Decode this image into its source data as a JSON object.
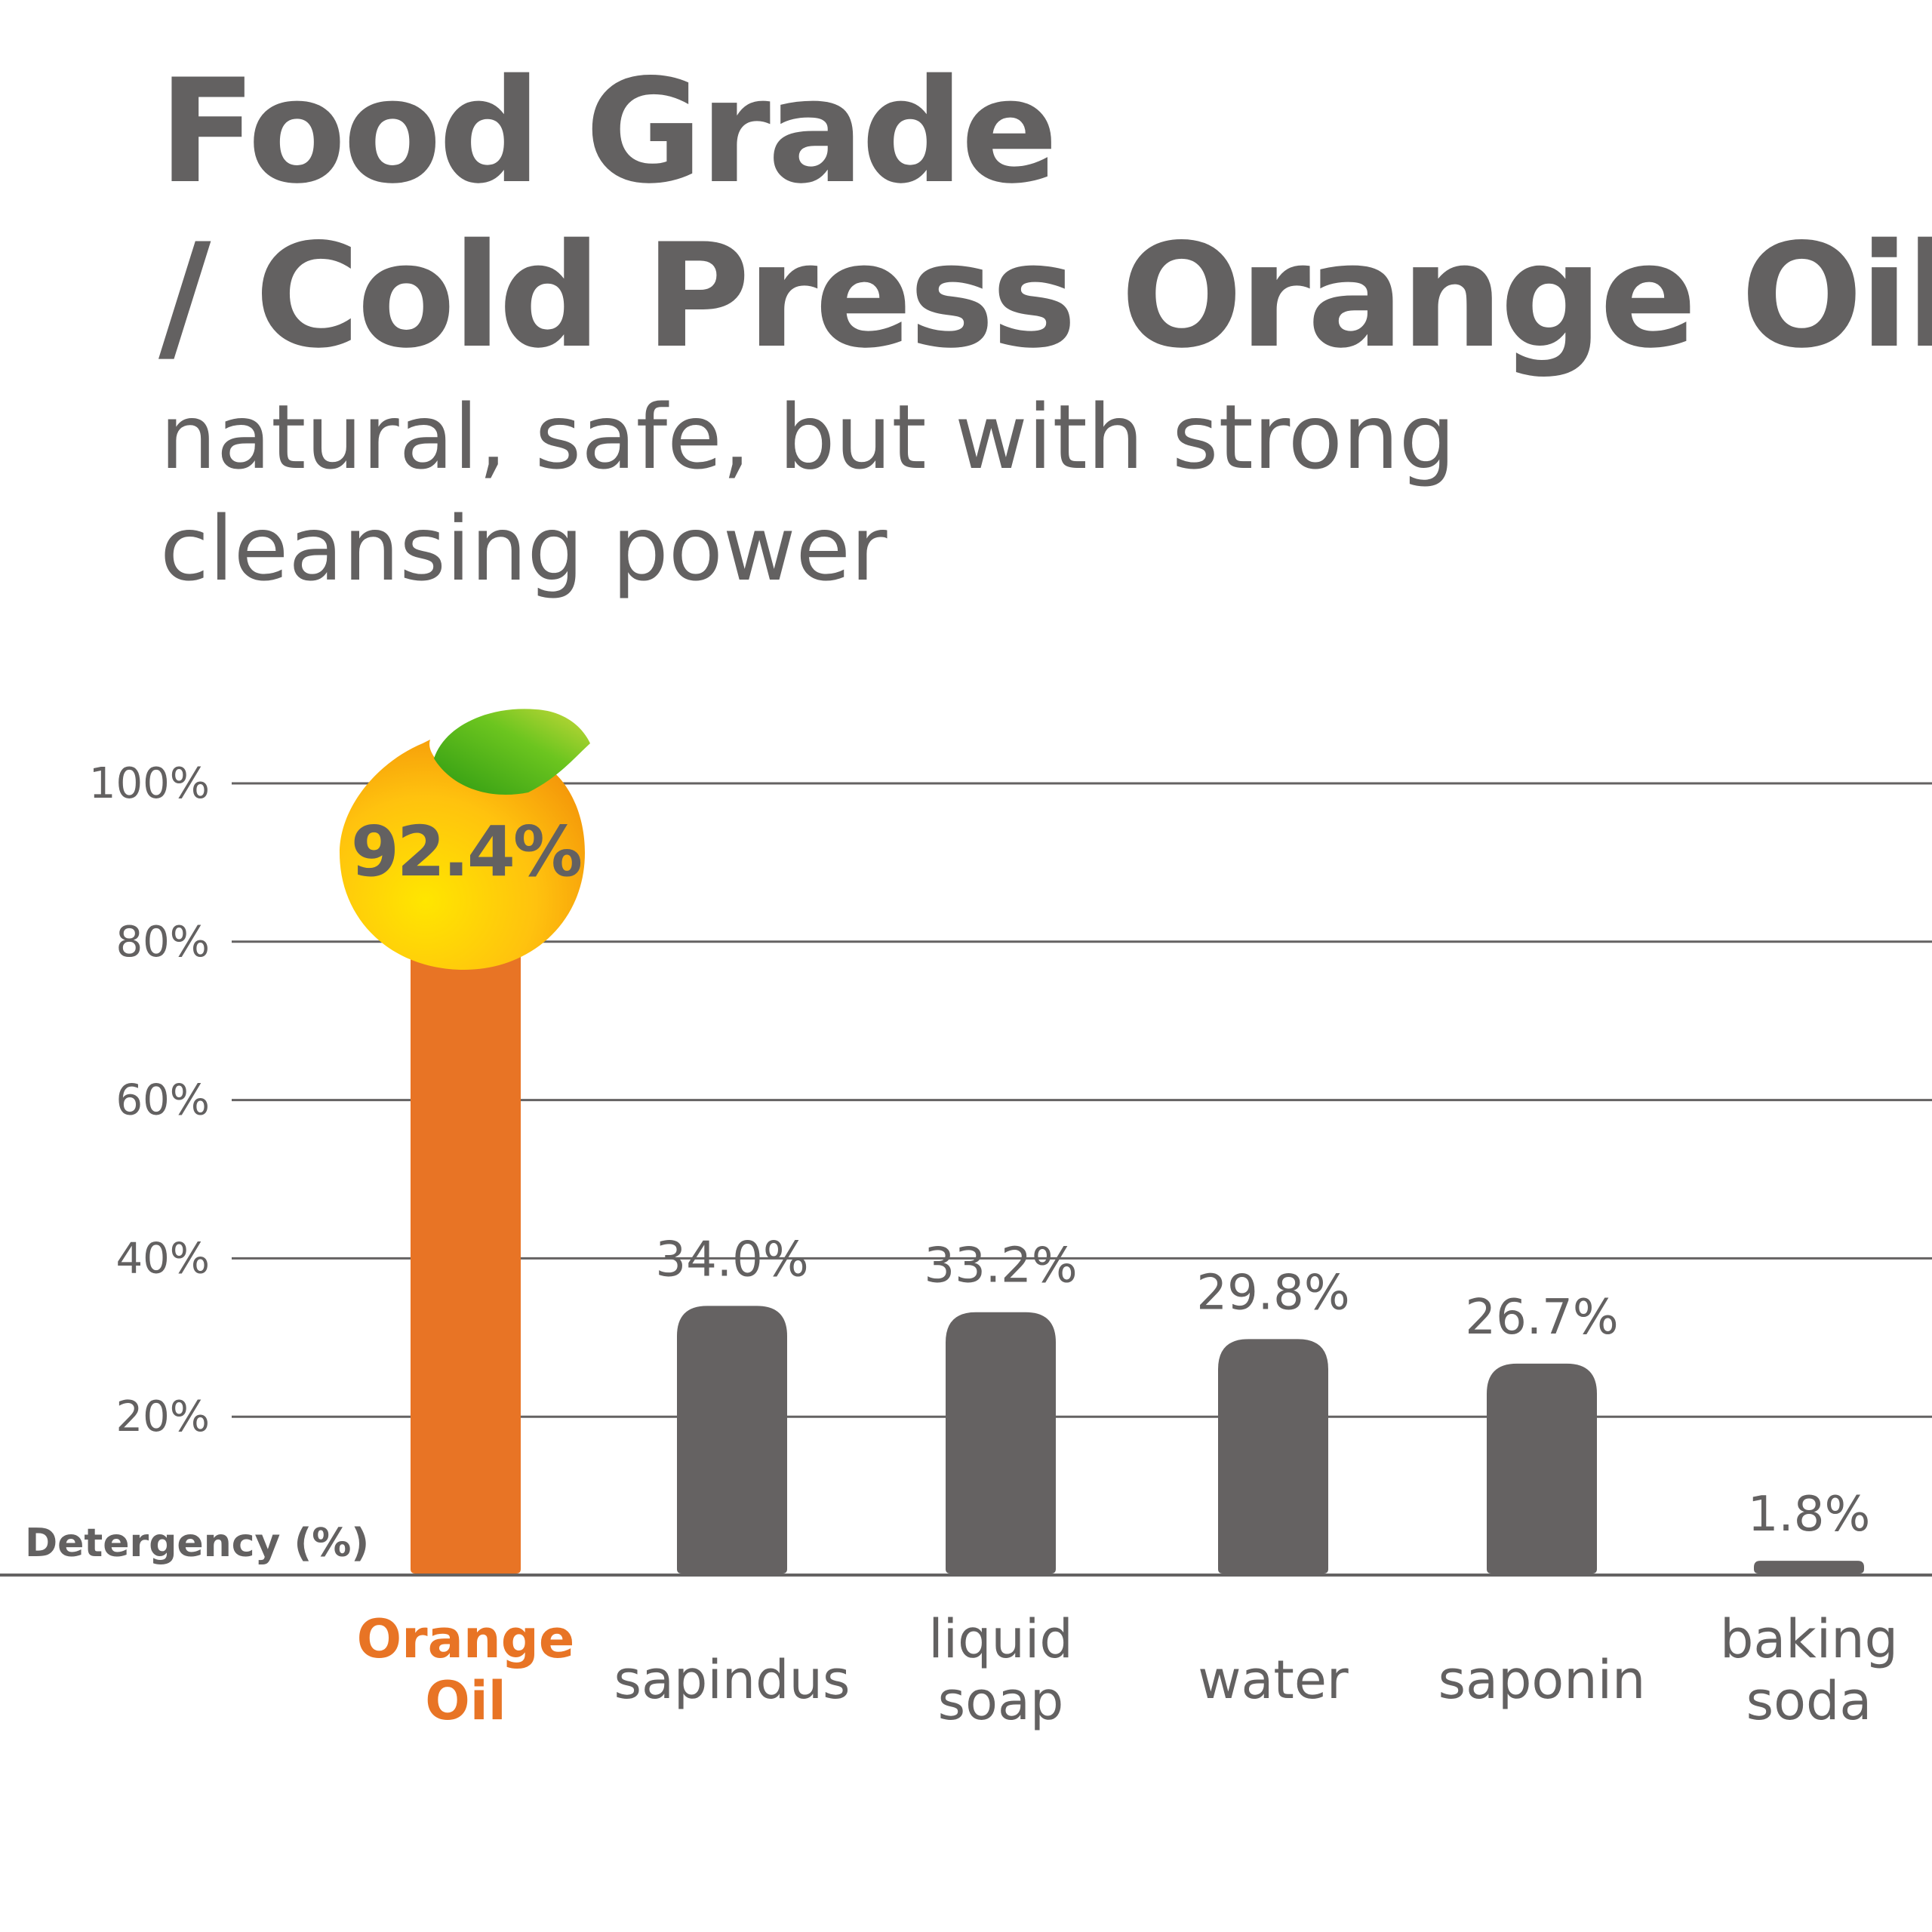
{
  "header": {
    "title_line1": "Food Grade",
    "title_line2": "/ Cold Press Orange Oil",
    "subtitle_line1": "natural, safe, but with strong",
    "subtitle_line2": "cleansing power"
  },
  "chart_data": {
    "type": "bar",
    "ylabel": "Detergency (%)",
    "ylim": [
      0,
      100
    ],
    "yticks": [
      "20%",
      "40%",
      "60%",
      "80%",
      "100%"
    ],
    "ytick_values": [
      20,
      40,
      60,
      80,
      100
    ],
    "grid": true,
    "categories": [
      [
        "Orange",
        "Oil"
      ],
      [
        "sapindus"
      ],
      [
        "liquid",
        "soap"
      ],
      [
        "water"
      ],
      [
        "saponin"
      ],
      [
        "baking",
        "soda"
      ]
    ],
    "values": [
      92.4,
      34.0,
      33.2,
      29.8,
      26.7,
      1.8
    ],
    "labels": [
      "92.4%",
      "34.0%",
      "33.2%",
      "29.8%",
      "26.7%",
      "1.8%"
    ],
    "highlight_index": 0,
    "colors": {
      "highlight": "#E87425",
      "bar": "#656262",
      "grid": "#646262",
      "text": "#636161"
    },
    "highlight_icon": "orange-fruit-icon"
  }
}
